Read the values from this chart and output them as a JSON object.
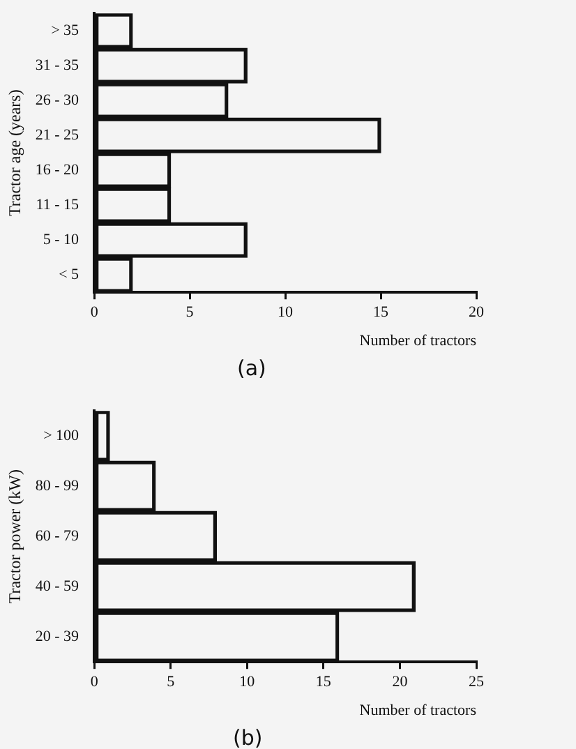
{
  "chart_data": [
    {
      "type": "bar",
      "orientation": "horizontal",
      "ylabel": "Tractor age (years)",
      "xlabel": "Number of tractors",
      "categories": [
        "> 35",
        "31 - 35",
        "26 - 30",
        "21 - 25",
        "16 - 20",
        "11 - 15",
        "5 - 10",
        "< 5"
      ],
      "values": [
        2,
        8,
        7,
        15,
        4,
        4,
        8,
        2
      ],
      "color": "#111111",
      "xlim": [
        0,
        20
      ],
      "xticks": [
        0,
        5,
        10,
        15,
        20
      ],
      "grid": false,
      "legend": false,
      "annotations": [
        "(a)"
      ]
    },
    {
      "type": "bar",
      "orientation": "horizontal",
      "ylabel": "Tractor power (kW)",
      "xlabel": "Number of tractors",
      "categories": [
        "> 100",
        "80 - 99",
        "60 - 79",
        "40 - 59",
        "20 - 39"
      ],
      "values": [
        1,
        4,
        8,
        21,
        16
      ],
      "color": "#111111",
      "xlim": [
        0,
        25
      ],
      "xticks": [
        0,
        5,
        10,
        15,
        20,
        25
      ],
      "grid": false,
      "legend": false,
      "annotations": [
        "(b)"
      ]
    }
  ]
}
